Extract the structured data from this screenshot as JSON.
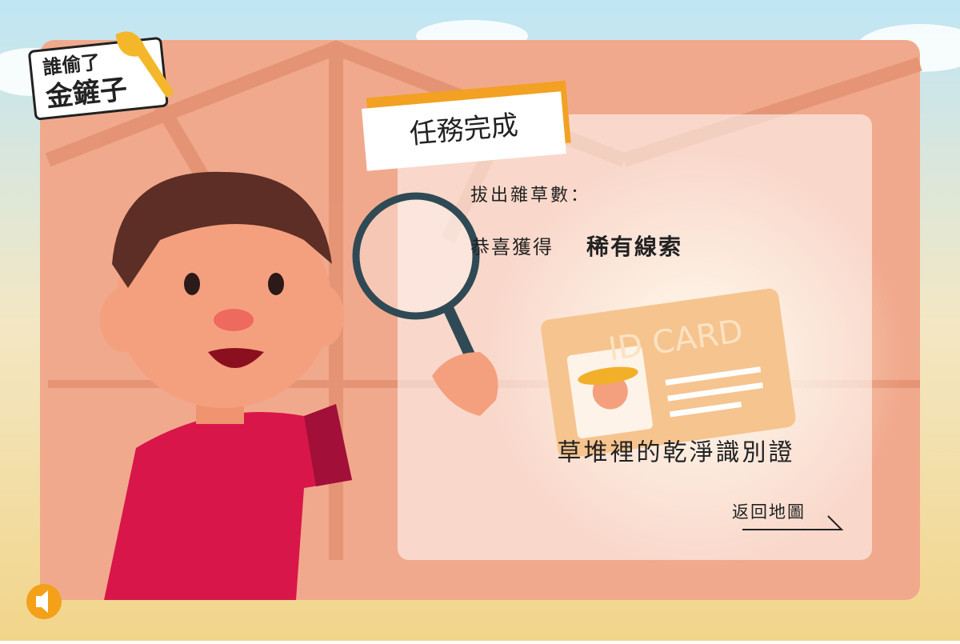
{
  "logo": {
    "line1": "誰偷了",
    "line2": "金鏟子"
  },
  "dialog": {
    "title": "任務完成",
    "weeds_label": "拔出雜草數：",
    "reward_prefix": "恭喜獲得",
    "reward_name": "稀有線索",
    "card_text": "ID CARD",
    "item_name": "草堆裡的乾淨識別證",
    "back_button": "返回地圖"
  }
}
